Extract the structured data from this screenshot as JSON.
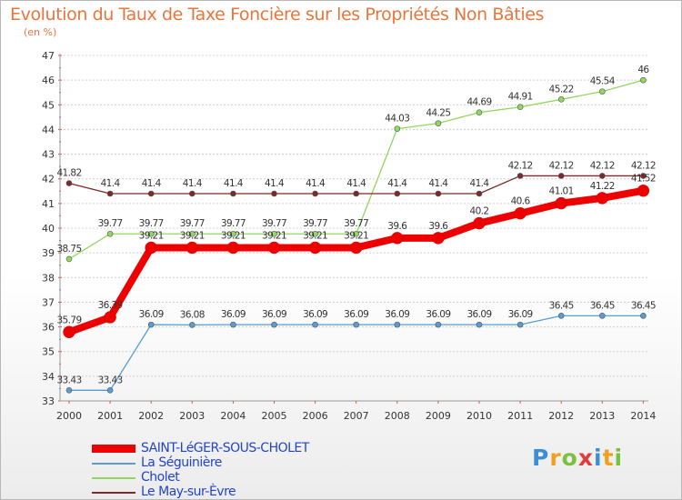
{
  "title": "Evolution du Taux de Taxe Foncière sur les Propriétés Non Bâties",
  "unit_label": "(en %)",
  "brand": {
    "letters": [
      "P",
      "r",
      "o",
      "x",
      "i",
      "t",
      "i"
    ],
    "colors": [
      "#3a8fd8",
      "#f0a020",
      "#7cc040",
      "#e03c3c",
      "#3a8fd8",
      "#f0a020",
      "#7cc040"
    ]
  },
  "chart_data": {
    "type": "line",
    "title": "Evolution du Taux de Taxe Foncière sur les Propriétés Non Bâties",
    "ylabel": "(en %)",
    "xlabel": "",
    "ylim": [
      33,
      47
    ],
    "yticks": [
      33,
      34,
      35,
      36,
      37,
      38,
      39,
      40,
      41,
      42,
      43,
      44,
      45,
      46,
      47
    ],
    "categories": [
      "2000",
      "2001",
      "2002",
      "2003",
      "2004",
      "2005",
      "2006",
      "2007",
      "2008",
      "2009",
      "2010",
      "2011",
      "2012",
      "2013",
      "2014"
    ],
    "series": [
      {
        "name": "SAINT-LéGER-SOUS-CHOLET",
        "color": "#ee0000",
        "thick": true,
        "values": [
          35.79,
          36.39,
          39.21,
          39.21,
          39.21,
          39.21,
          39.21,
          39.21,
          39.6,
          39.6,
          40.2,
          40.6,
          41.01,
          41.22,
          41.52
        ],
        "labels": [
          "35.79",
          "36.39",
          "39.21",
          "39.21",
          "39.21",
          "39.21",
          "39.21",
          "39.21",
          "39.6",
          "39.6",
          "40.2",
          "40.6",
          "41.01",
          "41.22",
          "41.52"
        ]
      },
      {
        "name": "La Séguinière",
        "color": "#5b9bd0",
        "thick": false,
        "values": [
          33.43,
          33.43,
          36.09,
          36.08,
          36.09,
          36.09,
          36.09,
          36.09,
          36.09,
          36.09,
          36.09,
          36.09,
          36.45,
          36.45,
          36.45
        ],
        "labels": [
          "33.43",
          "33.43",
          "36.09",
          "36.08",
          "36.09",
          "36.09",
          "36.09",
          "36.09",
          "36.09",
          "36.09",
          "36.09",
          "36.09",
          "36.45",
          "36.45",
          "36.45"
        ]
      },
      {
        "name": "Cholet",
        "color": "#90d860",
        "thick": false,
        "values": [
          38.75,
          39.77,
          39.77,
          39.77,
          39.77,
          39.77,
          39.77,
          39.77,
          44.03,
          44.25,
          44.69,
          44.91,
          45.22,
          45.54,
          46
        ],
        "labels": [
          "38.75",
          "39.77",
          "39.77",
          "39.77",
          "39.77",
          "39.77",
          "39.77",
          "39.77",
          "44.03",
          "44.25",
          "44.69",
          "44.91",
          "45.22",
          "45.54",
          "46"
        ]
      },
      {
        "name": "Le May-sur-Èvre",
        "color": "#7a2a2a",
        "thick": false,
        "values": [
          41.82,
          41.4,
          41.4,
          41.4,
          41.4,
          41.4,
          41.4,
          41.4,
          41.4,
          41.4,
          41.4,
          42.12,
          42.12,
          42.12,
          42.12
        ],
        "labels": [
          "41.82",
          "41.4",
          "41.4",
          "41.4",
          "41.4",
          "41.4",
          "41.4",
          "41.4",
          "41.4",
          "41.4",
          "41.4",
          "42.12",
          "42.12",
          "42.12",
          "42.12"
        ]
      }
    ],
    "grid": "horizontal",
    "legend_position": "bottom-left"
  }
}
